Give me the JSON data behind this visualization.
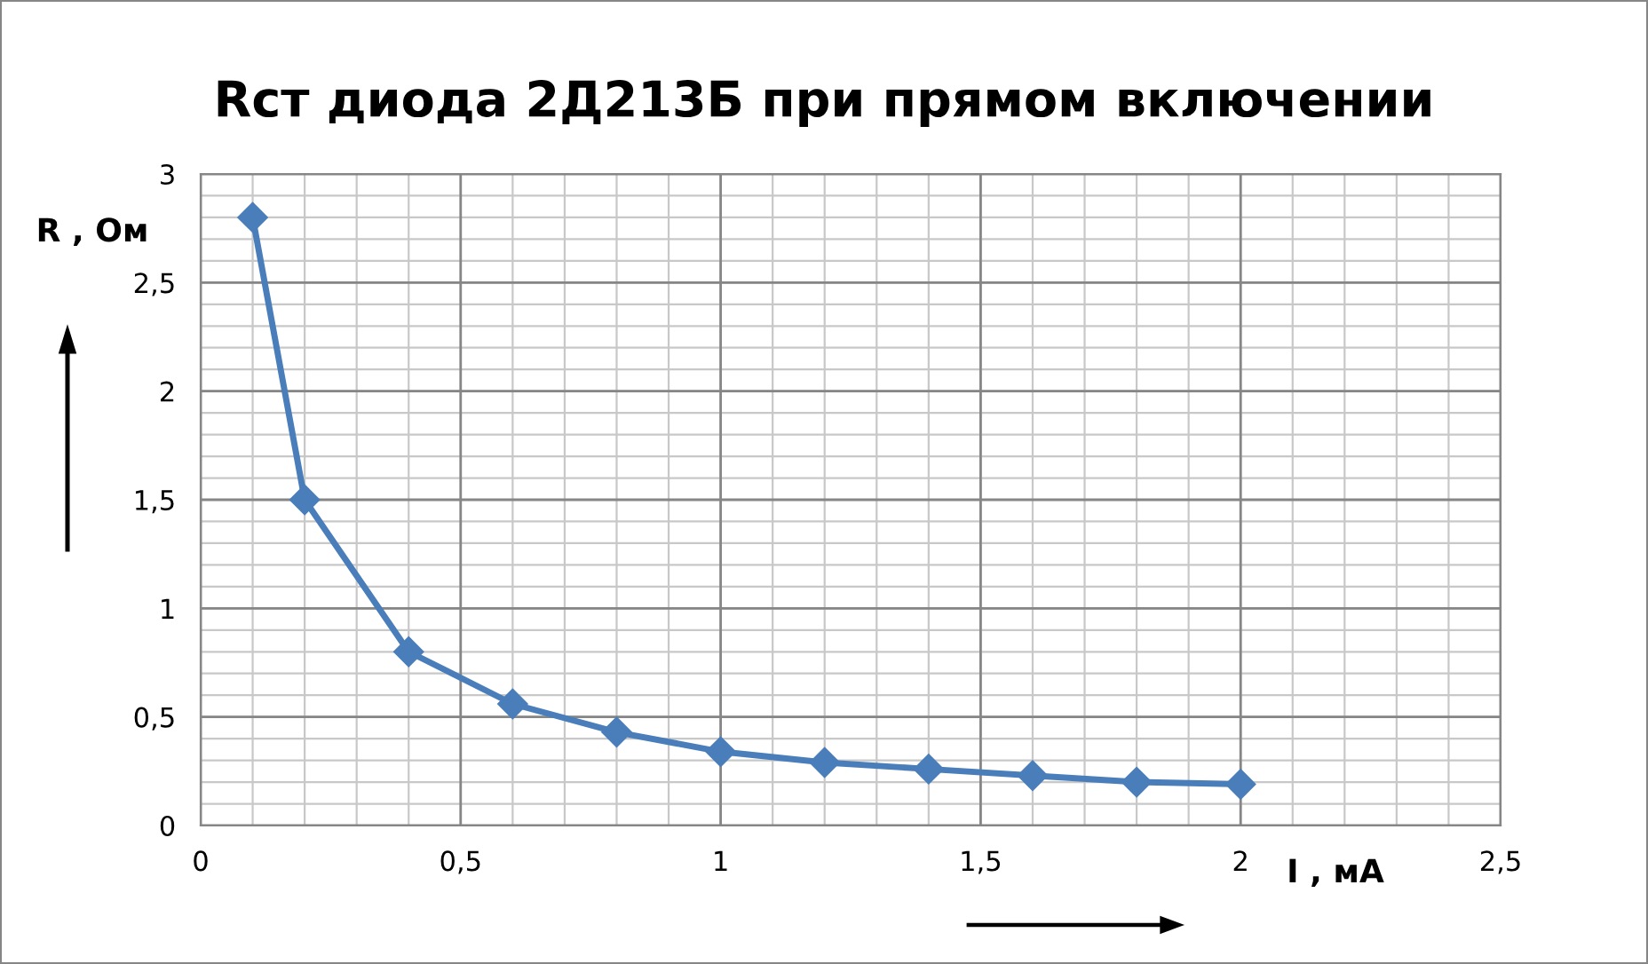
{
  "chart_data": {
    "type": "line",
    "title": "Rст диода 2Д213Б при прямом включении",
    "xlabel": "I , мА",
    "ylabel": "R , Ом",
    "x": [
      0.1,
      0.2,
      0.4,
      0.6,
      0.8,
      1.0,
      1.2,
      1.4,
      1.6,
      1.8,
      2.0
    ],
    "series": [
      {
        "color": "#4a7ebb",
        "values": [
          2.8,
          1.5,
          0.8,
          0.56,
          0.43,
          0.34,
          0.29,
          0.26,
          0.23,
          0.2,
          0.19
        ]
      }
    ],
    "xlim": [
      0,
      2.5
    ],
    "xticks": [
      0,
      {
        "value": 0.5,
        "label": "0,5"
      },
      1,
      {
        "value": 1.5,
        "label": "1,5"
      },
      2,
      {
        "value": 2.5,
        "label": "2,5"
      }
    ],
    "ylim": [
      0,
      3
    ],
    "yticks": [
      0,
      {
        "value": 0.5,
        "label": "0,5"
      },
      1,
      {
        "value": 1.5,
        "label": "1,5"
      },
      2,
      {
        "value": 2.5,
        "label": "2,5"
      },
      3
    ],
    "grid": true,
    "legend": false,
    "marker": "diamond",
    "line_style": "solid"
  }
}
